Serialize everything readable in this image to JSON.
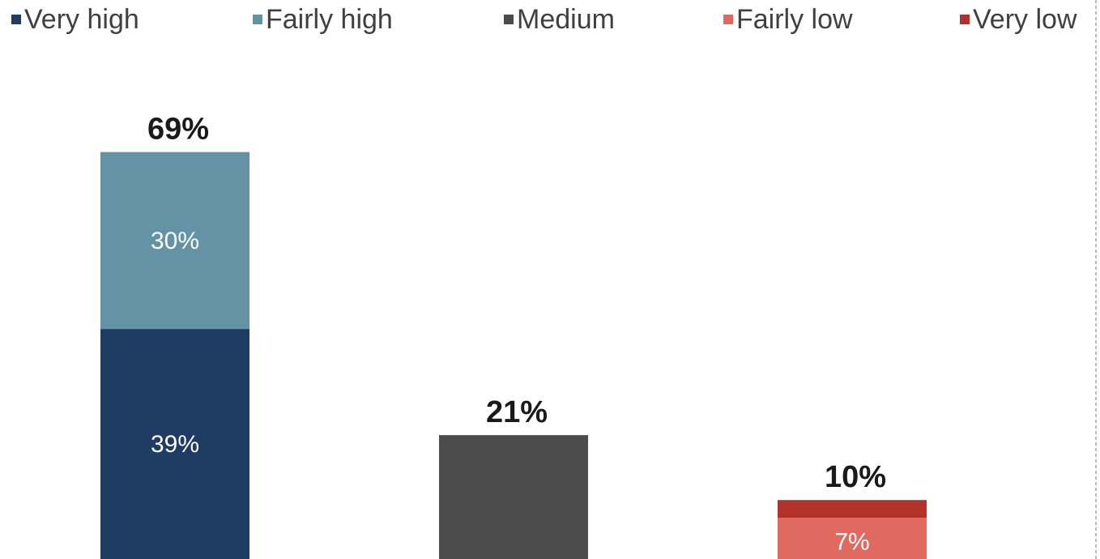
{
  "chart_data": {
    "type": "bar",
    "stacked": true,
    "categories": [
      "",
      "",
      ""
    ],
    "legend_position": "top",
    "grid": false,
    "ylim": [
      0,
      100
    ],
    "series": [
      {
        "name": "Very high",
        "color": "#1f3c63",
        "values": [
          39,
          0,
          0
        ]
      },
      {
        "name": "Fairly high",
        "color": "#6393a5",
        "values": [
          30,
          0,
          0
        ]
      },
      {
        "name": "Medium",
        "color": "#4b4b4b",
        "values": [
          0,
          21,
          0
        ]
      },
      {
        "name": "Fairly low",
        "color": "#e06a60",
        "values": [
          0,
          0,
          7
        ]
      },
      {
        "name": "Very low",
        "color": "#b2322a",
        "values": [
          0,
          0,
          3
        ]
      }
    ],
    "segment_labels": [
      {
        "bar": 0,
        "series": 0,
        "text": "39%"
      },
      {
        "bar": 0,
        "series": 1,
        "text": "30%"
      },
      {
        "bar": 2,
        "series": 3,
        "text": "7%"
      }
    ],
    "totals": [
      "69%",
      "21%",
      "10%"
    ]
  }
}
